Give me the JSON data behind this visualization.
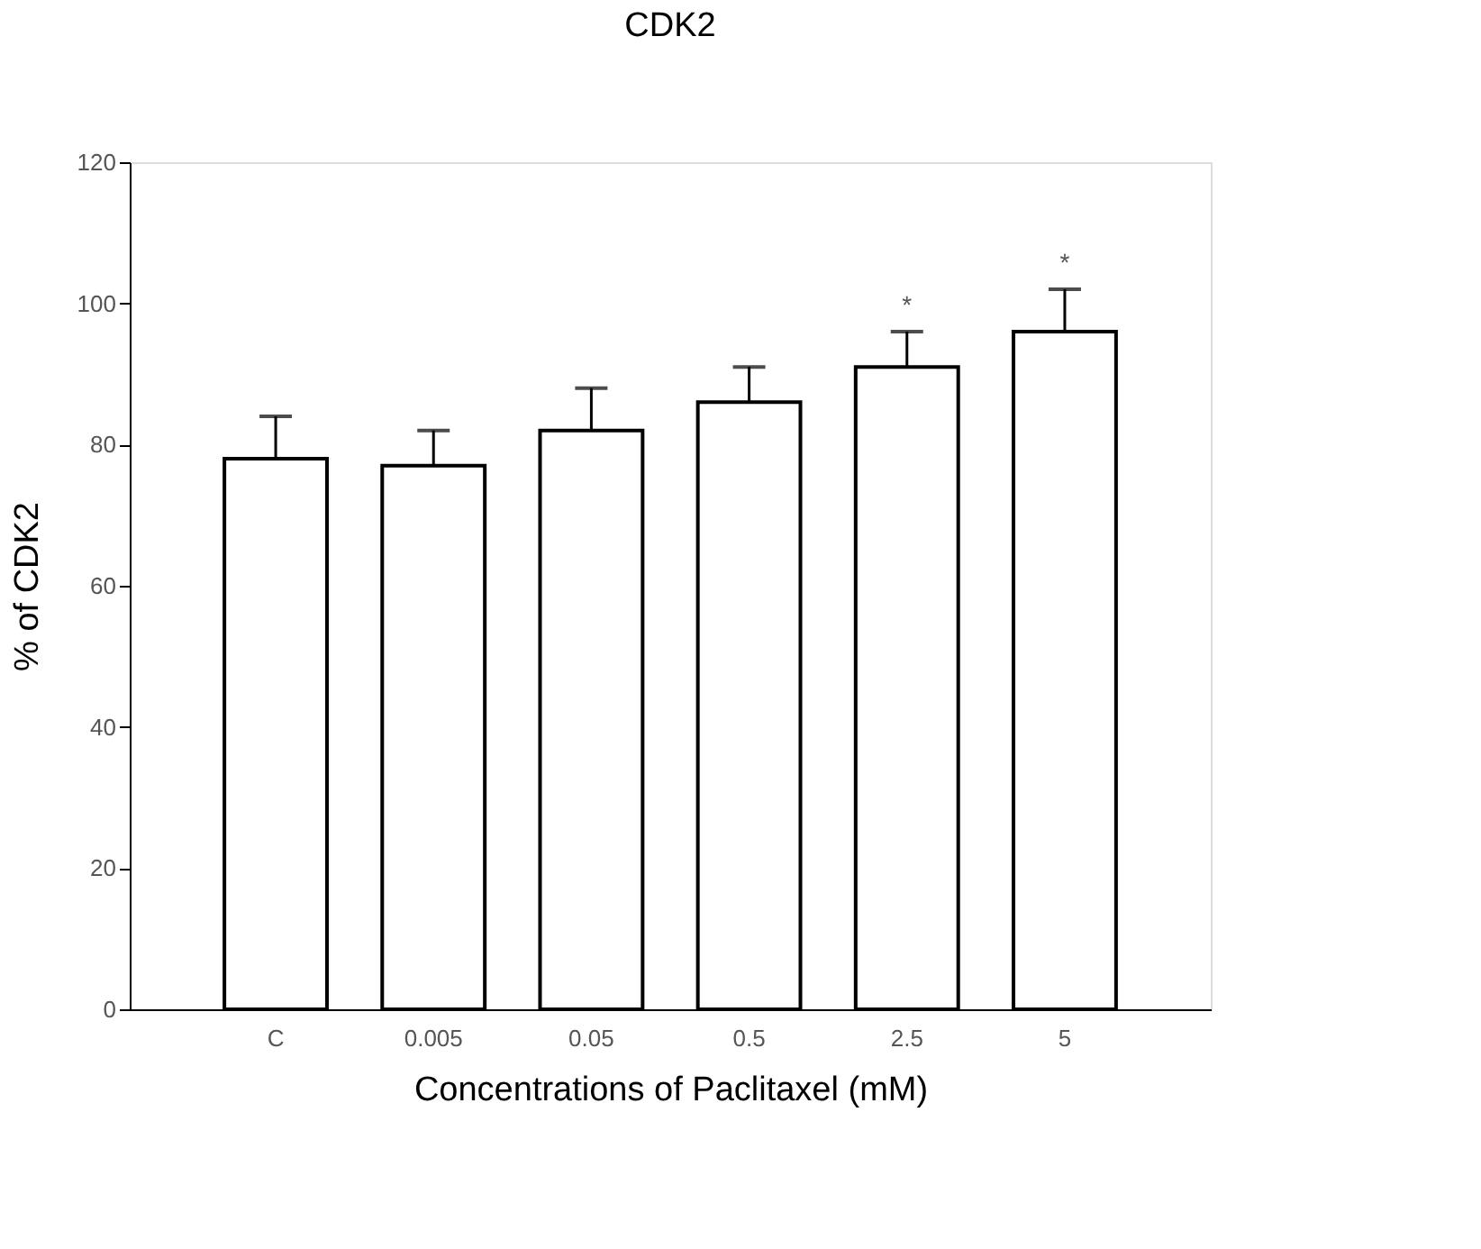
{
  "chart_data": {
    "type": "bar",
    "title": "CDK2",
    "xlabel": "Concentrations of Paclitaxel (mM)",
    "ylabel": "% of CDK2",
    "categories": [
      "C",
      "0.005",
      "0.05",
      "0.5",
      "2.5",
      "5"
    ],
    "series": [
      {
        "color": "#ffffff",
        "values": [
          78,
          77,
          82,
          86,
          91,
          96
        ],
        "errors": [
          6,
          5,
          6,
          5,
          5,
          6
        ]
      }
    ],
    "ylim": [
      0,
      120
    ],
    "yticks": [
      0,
      20,
      40,
      60,
      80,
      100,
      120
    ],
    "grid": false,
    "annotations": [
      {
        "text": "*",
        "x": "2.5",
        "y": 96
      },
      {
        "text": "*",
        "x": "5",
        "y": 102
      }
    ]
  }
}
